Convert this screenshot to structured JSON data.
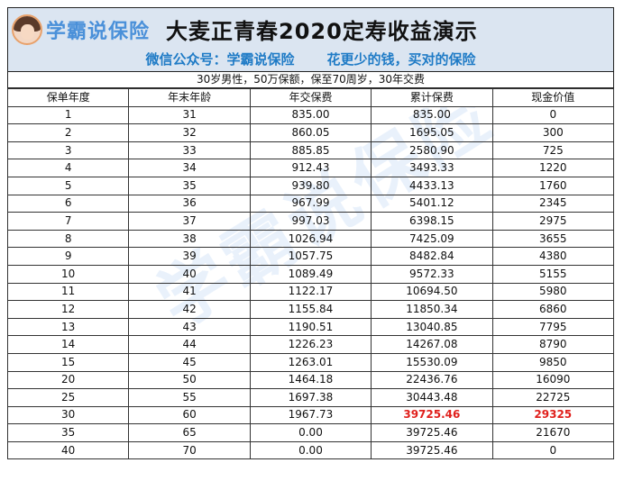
{
  "header": {
    "logo_text": "学霸说保险",
    "title": "大麦正青春2020定寿收益演示",
    "subtitle_left": "微信公众号：学霸说保险",
    "subtitle_right": "花更少的钱，买对的保险",
    "background_color": "#dbe5f1",
    "accent_color": "#1f7bc6"
  },
  "condition": "30岁男性，50万保额，保至70周岁，30年交费",
  "table": {
    "columns": [
      "保单年度",
      "年末年龄",
      "年交保费",
      "累计保费",
      "现金价值"
    ],
    "rows": [
      [
        "1",
        "31",
        "835.00",
        "835.00",
        "0"
      ],
      [
        "2",
        "32",
        "860.05",
        "1695.05",
        "300"
      ],
      [
        "3",
        "33",
        "885.85",
        "2580.90",
        "725"
      ],
      [
        "4",
        "34",
        "912.43",
        "3493.33",
        "1220"
      ],
      [
        "5",
        "35",
        "939.80",
        "4433.13",
        "1760"
      ],
      [
        "6",
        "36",
        "967.99",
        "5401.12",
        "2345"
      ],
      [
        "7",
        "37",
        "997.03",
        "6398.15",
        "2975"
      ],
      [
        "8",
        "38",
        "1026.94",
        "7425.09",
        "3655"
      ],
      [
        "9",
        "39",
        "1057.75",
        "8482.84",
        "4380"
      ],
      [
        "10",
        "40",
        "1089.49",
        "9572.33",
        "5155"
      ],
      [
        "11",
        "41",
        "1122.17",
        "10694.50",
        "5980"
      ],
      [
        "12",
        "42",
        "1155.84",
        "11850.34",
        "6860"
      ],
      [
        "13",
        "43",
        "1190.51",
        "13040.85",
        "7795"
      ],
      [
        "14",
        "44",
        "1226.23",
        "14267.08",
        "8790"
      ],
      [
        "15",
        "45",
        "1263.01",
        "15530.09",
        "9850"
      ],
      [
        "20",
        "50",
        "1464.18",
        "22436.76",
        "16090"
      ],
      [
        "25",
        "55",
        "1697.38",
        "30443.48",
        "22725"
      ],
      [
        "30",
        "60",
        "1967.73",
        "39725.46",
        "29325"
      ],
      [
        "35",
        "65",
        "0.00",
        "39725.46",
        "21670"
      ],
      [
        "40",
        "70",
        "0.00",
        "39725.46",
        "0"
      ]
    ],
    "highlight_row_index": 17,
    "highlight_columns": [
      3,
      4
    ],
    "highlight_color": "#e0201c"
  },
  "watermark": "学霸说保险"
}
